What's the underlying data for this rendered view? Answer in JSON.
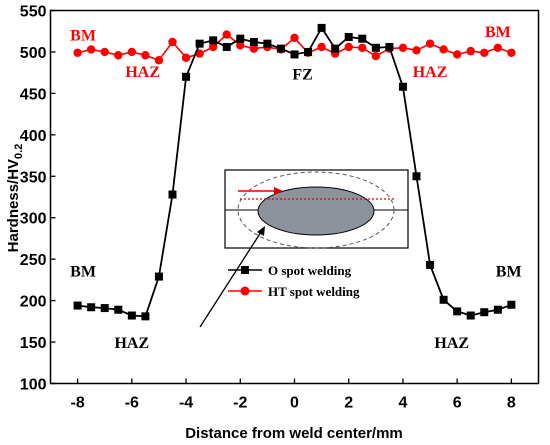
{
  "chart_data": {
    "type": "line",
    "xlabel": "Distance from weld center/mm",
    "ylabel_main": "Hardness/HV",
    "ylabel_sub": "0.2",
    "xlim": [
      -9,
      9
    ],
    "ylim": [
      100,
      550
    ],
    "xticks": [
      -8,
      -6,
      -4,
      -2,
      0,
      2,
      4,
      6,
      8
    ],
    "yticks": [
      100,
      150,
      200,
      250,
      300,
      350,
      400,
      450,
      500,
      550
    ],
    "series": [
      {
        "name": "O spot welding",
        "color": "#000000",
        "marker": "square",
        "x": [
          -8,
          -7.5,
          -7,
          -6.5,
          -6,
          -5.5,
          -5,
          -4.5,
          -4,
          -3.5,
          -3,
          -2.5,
          -2,
          -1.5,
          -1,
          -0.5,
          0,
          0.5,
          1,
          1.5,
          2,
          2.5,
          3,
          3.5,
          4,
          4.5,
          5,
          5.5,
          6,
          6.5,
          7,
          7.5,
          8
        ],
        "y": [
          194,
          192,
          191,
          189,
          182,
          181,
          229,
          328,
          470,
          510,
          514,
          506,
          516,
          512,
          510,
          504,
          497,
          500,
          529,
          504,
          518,
          516,
          505,
          506,
          458,
          350,
          243,
          201,
          187,
          182,
          186,
          189,
          195
        ]
      },
      {
        "name": "HT spot welding",
        "color": "#ff0000",
        "marker": "circle",
        "x": [
          -8,
          -7.5,
          -7,
          -6.5,
          -6,
          -5.5,
          -5,
          -4.5,
          -4,
          -3.5,
          -3,
          -2.5,
          -2,
          -1.5,
          -1,
          -0.5,
          0,
          0.5,
          1,
          1.5,
          2,
          2.5,
          3,
          3.5,
          4,
          4.5,
          5,
          5.5,
          6,
          6.5,
          7,
          7.5,
          8
        ],
        "y": [
          499,
          503,
          500,
          496,
          500,
          496,
          490,
          512,
          493,
          498,
          506,
          521,
          508,
          504,
          506,
          503,
          517,
          499,
          506,
          498,
          506,
          505,
          495,
          504,
          505,
          502,
          510,
          503,
          497,
          501,
          499,
          505,
          499
        ]
      }
    ],
    "annotations": [
      {
        "text": "BM",
        "x": -7.8,
        "y": 514,
        "color": "#ff0000"
      },
      {
        "text": "HAZ",
        "x": -5.6,
        "y": 470,
        "color": "#ff0000"
      },
      {
        "text": "FZ",
        "x": 0.3,
        "y": 467,
        "color": "#000000"
      },
      {
        "text": "HAZ",
        "x": 5.0,
        "y": 470,
        "color": "#ff0000"
      },
      {
        "text": "BM",
        "x": 7.5,
        "y": 518,
        "color": "#ff0000"
      },
      {
        "text": "BM",
        "x": -7.8,
        "y": 229,
        "color": "#000000"
      },
      {
        "text": "BM",
        "x": 7.9,
        "y": 229,
        "color": "#000000"
      },
      {
        "text": "HAZ",
        "x": -6.0,
        "y": 143,
        "color": "#000000"
      },
      {
        "text": "HAZ",
        "x": 5.8,
        "y": 143,
        "color": "#000000"
      }
    ],
    "legend_position": "center-right",
    "grid": false,
    "inset": "schematic of spot weld cross-section with measurement line"
  }
}
